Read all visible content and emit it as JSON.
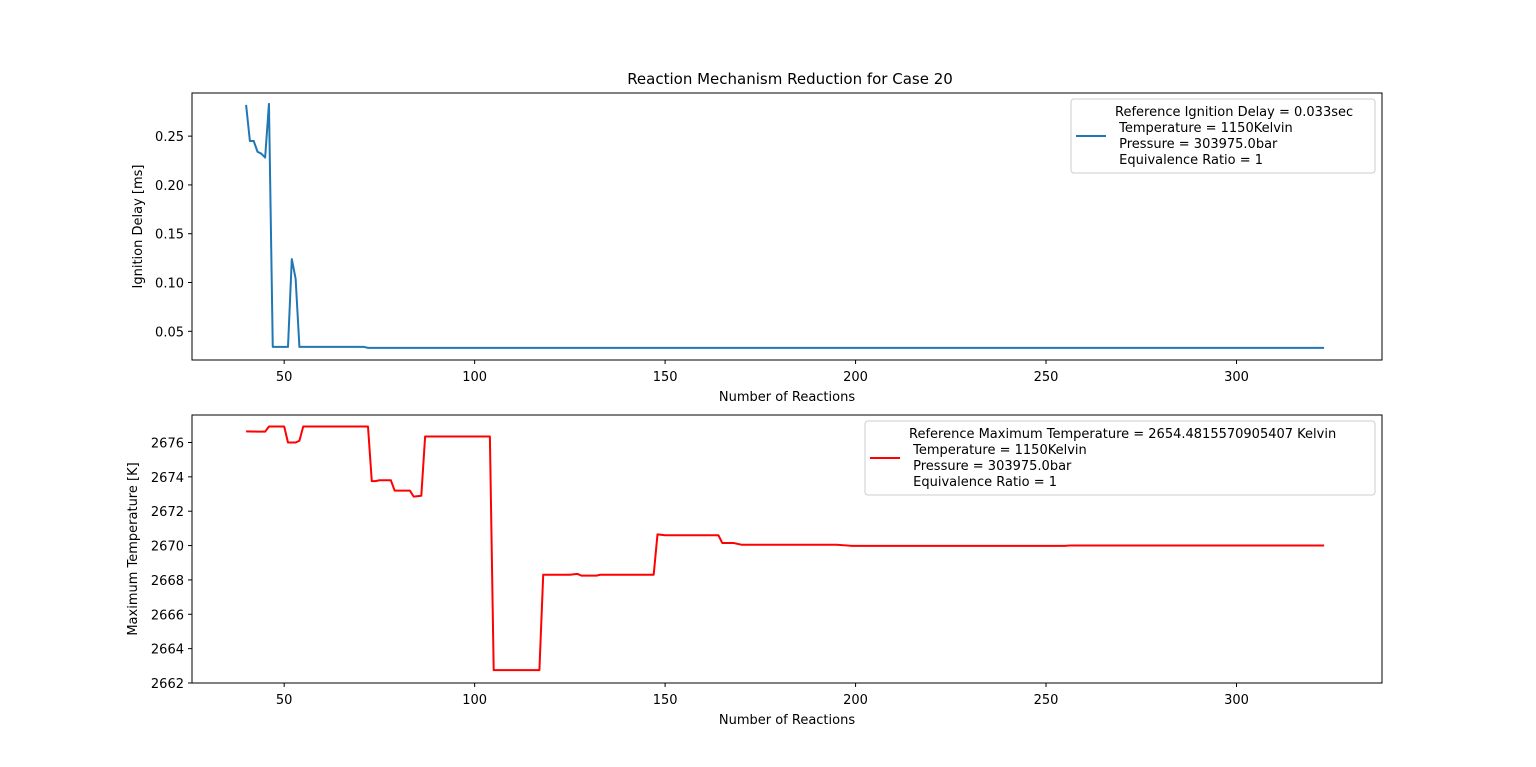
{
  "figure_title": "Reaction Mechanism Reduction for Case 20",
  "chart_data": [
    {
      "type": "line",
      "title": "Reaction Mechanism Reduction for Case 20",
      "xlabel": "Number of Reactions",
      "ylabel": "Ignition Delay [ms]",
      "xlim": [
        25.8,
        338.2
      ],
      "ylim": [
        0.0206,
        0.2942
      ],
      "xticks": [
        50,
        100,
        150,
        200,
        250,
        300
      ],
      "yticks": [
        0.05,
        0.1,
        0.15,
        0.2,
        0.25
      ],
      "ytick_labels": [
        "0.05",
        "0.10",
        "0.15",
        "0.20",
        "0.25"
      ],
      "legend_position": "upper-right",
      "series": [
        {
          "name": "Reference Ignition Delay = 0.033sec\n Temperature = 1150Kelvin\n Pressure = 303975.0bar\n Equivalence Ratio = 1",
          "legend_lines": [
            "Reference Ignition Delay = 0.033sec",
            " Temperature = 1150Kelvin",
            " Pressure = 303975.0bar",
            " Equivalence Ratio = 1"
          ],
          "color": "#1f77b4",
          "x": [
            40,
            41,
            42,
            43,
            44,
            45,
            46,
            47,
            48,
            49,
            50,
            51,
            52,
            53,
            54,
            56,
            60,
            65,
            70,
            71,
            72,
            80,
            100,
            150,
            200,
            250,
            300,
            323
          ],
          "y": [
            0.282,
            0.245,
            0.245,
            0.234,
            0.232,
            0.228,
            0.283,
            0.034,
            0.034,
            0.034,
            0.034,
            0.034,
            0.124,
            0.104,
            0.034,
            0.034,
            0.034,
            0.034,
            0.034,
            0.034,
            0.033,
            0.033,
            0.033,
            0.033,
            0.033,
            0.033,
            0.033,
            0.033
          ]
        }
      ]
    },
    {
      "type": "line",
      "title": "",
      "xlabel": "Number of Reactions",
      "ylabel": "Maximum Temperature [K]",
      "xlim": [
        25.8,
        338.2
      ],
      "ylim": [
        2662.0,
        2677.6
      ],
      "xticks": [
        50,
        100,
        150,
        200,
        250,
        300
      ],
      "yticks": [
        2662,
        2664,
        2666,
        2668,
        2670,
        2672,
        2674,
        2676
      ],
      "ytick_labels": [
        "2662",
        "2664",
        "2666",
        "2668",
        "2670",
        "2672",
        "2674",
        "2676"
      ],
      "legend_position": "upper-right",
      "series": [
        {
          "name": "Reference Maximum Temperature = 2654.4815570905407 Kelvin\n Temperature = 1150Kelvin\n Pressure = 303975.0bar\n Equivalence Ratio = 1",
          "legend_lines": [
            "Reference Maximum Temperature = 2654.4815570905407 Kelvin",
            " Temperature = 1150Kelvin",
            " Pressure = 303975.0bar",
            " Equivalence Ratio = 1"
          ],
          "color": "#ff0000",
          "x": [
            40,
            43,
            45,
            46,
            48,
            50,
            51,
            52,
            53,
            54,
            55,
            60,
            70,
            72,
            73,
            74,
            75,
            76,
            78,
            79,
            80,
            83,
            84,
            86,
            87,
            100,
            104,
            105,
            110,
            117,
            118,
            125,
            127,
            128,
            132,
            133,
            140,
            147,
            148,
            150,
            160,
            164,
            165,
            168,
            170,
            175,
            180,
            185,
            190,
            195,
            198,
            199,
            220,
            255,
            256,
            300,
            323
          ],
          "y": [
            2676.65,
            2676.63,
            2676.63,
            2676.93,
            2676.93,
            2676.93,
            2676.0,
            2676.0,
            2676.0,
            2676.1,
            2676.93,
            2676.93,
            2676.93,
            2676.93,
            2673.75,
            2673.75,
            2673.8,
            2673.8,
            2673.8,
            2673.2,
            2673.2,
            2673.2,
            2672.85,
            2672.9,
            2676.35,
            2676.35,
            2676.35,
            2662.75,
            2662.75,
            2662.75,
            2668.3,
            2668.3,
            2668.35,
            2668.25,
            2668.25,
            2668.3,
            2668.3,
            2668.3,
            2670.65,
            2670.6,
            2670.6,
            2670.6,
            2670.15,
            2670.15,
            2670.05,
            2670.05,
            2670.05,
            2670.05,
            2670.05,
            2670.05,
            2670.0,
            2669.98,
            2669.98,
            2669.98,
            2670.0,
            2670.0,
            2670.0
          ]
        }
      ]
    }
  ]
}
